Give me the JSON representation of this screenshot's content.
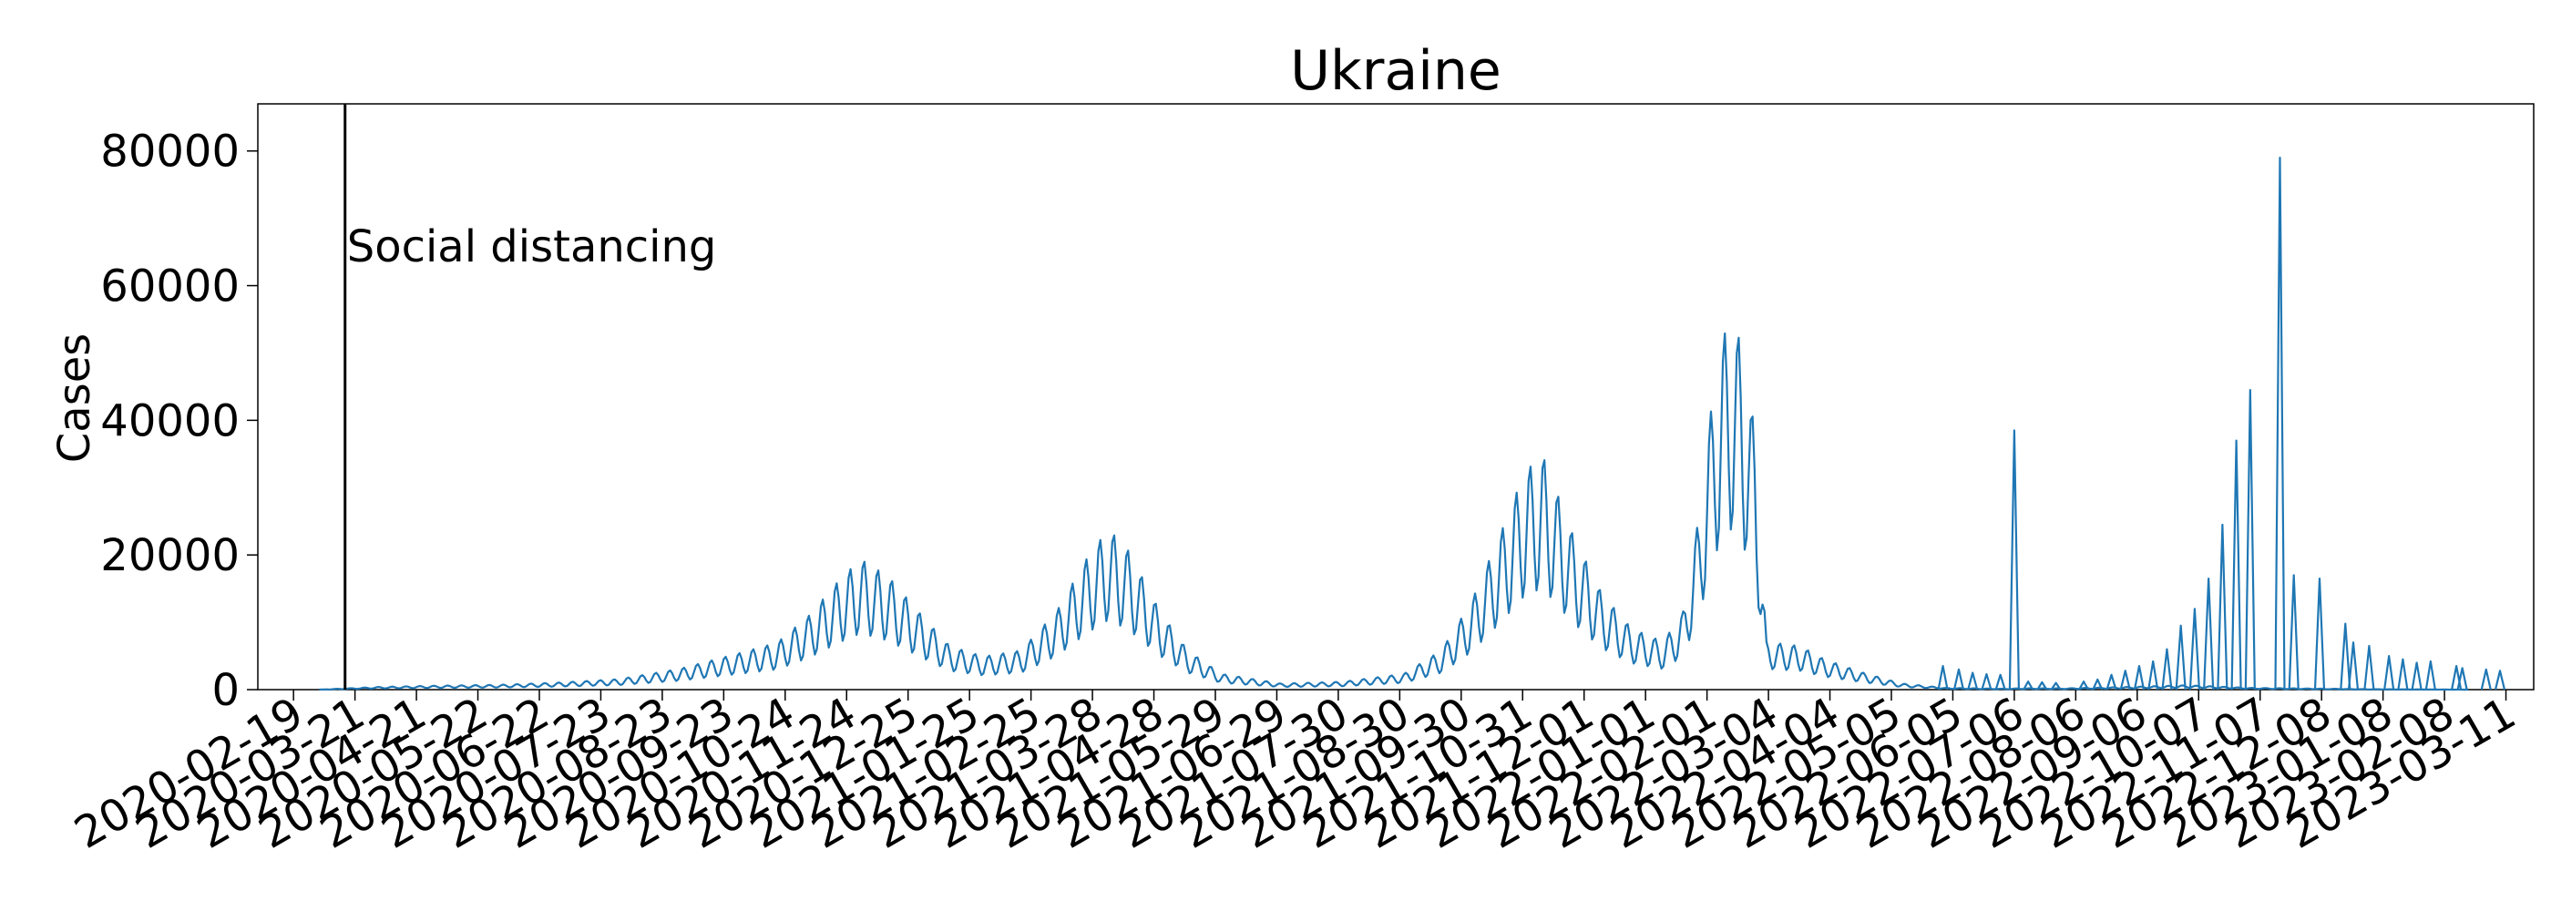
{
  "chart_data": {
    "type": "line",
    "title": "Ukraine",
    "xlabel": "",
    "ylabel": "Cases",
    "ylim": [
      0,
      87000
    ],
    "xlim": [
      "2020-02-01",
      "2023-03-25"
    ],
    "y_ticks": [
      0,
      20000,
      40000,
      60000,
      80000
    ],
    "x_ticks": [
      "2020-02-19",
      "2020-03-21",
      "2020-04-21",
      "2020-05-22",
      "2020-06-22",
      "2020-07-23",
      "2020-08-23",
      "2020-09-23",
      "2020-10-24",
      "2020-11-24",
      "2020-12-25",
      "2021-01-25",
      "2021-02-25",
      "2021-03-28",
      "2021-04-28",
      "2021-05-29",
      "2021-06-29",
      "2021-07-30",
      "2021-08-30",
      "2021-09-30",
      "2021-10-31",
      "2021-12-01",
      "2022-01-01",
      "2022-02-01",
      "2022-03-04",
      "2022-04-04",
      "2022-05-05",
      "2022-06-05",
      "2022-07-06",
      "2022-08-06",
      "2022-09-06",
      "2022-10-07",
      "2022-11-07",
      "2022-12-08",
      "2023-01-08",
      "2023-02-08",
      "2023-03-11"
    ],
    "grid": false,
    "annotations": [
      {
        "date": "2020-03-16",
        "text": "Social distancing",
        "style": "vertical-line"
      }
    ],
    "series": [
      {
        "color": "#1f77b4",
        "points": [
          [
            "2020-03-03",
            0
          ],
          [
            "2020-04-01",
            300
          ],
          [
            "2020-05-01",
            450
          ],
          [
            "2020-06-01",
            550
          ],
          [
            "2020-07-01",
            800
          ],
          [
            "2020-08-01",
            1200
          ],
          [
            "2020-09-01",
            2400
          ],
          [
            "2020-10-01",
            4200
          ],
          [
            "2020-10-20",
            5400
          ],
          [
            "2020-11-05",
            8500
          ],
          [
            "2020-11-20",
            12500
          ],
          [
            "2020-12-01",
            15000
          ],
          [
            "2020-12-15",
            13000
          ],
          [
            "2021-01-01",
            8500
          ],
          [
            "2021-01-15",
            5000
          ],
          [
            "2021-02-01",
            3800
          ],
          [
            "2021-02-20",
            4500
          ],
          [
            "2021-03-10",
            9000
          ],
          [
            "2021-03-25",
            15000
          ],
          [
            "2021-04-05",
            18500
          ],
          [
            "2021-04-15",
            16000
          ],
          [
            "2021-05-01",
            9000
          ],
          [
            "2021-05-15",
            4500
          ],
          [
            "2021-06-01",
            1800
          ],
          [
            "2021-07-01",
            700
          ],
          [
            "2021-08-01",
            900
          ],
          [
            "2021-09-01",
            1800
          ],
          [
            "2021-09-20",
            4500
          ],
          [
            "2021-10-05",
            10000
          ],
          [
            "2021-10-20",
            18000
          ],
          [
            "2021-11-01",
            25000
          ],
          [
            "2021-11-10",
            27000
          ],
          [
            "2021-11-25",
            18000
          ],
          [
            "2021-12-10",
            11000
          ],
          [
            "2021-12-25",
            7000
          ],
          [
            "2022-01-10",
            5500
          ],
          [
            "2022-01-20",
            9000
          ],
          [
            "2022-01-28",
            20000
          ],
          [
            "2022-02-05",
            36000
          ],
          [
            "2022-02-12",
            43000
          ],
          [
            "2022-02-18",
            40000
          ],
          [
            "2022-02-25",
            30000
          ],
          [
            "2022-03-03",
            5500
          ],
          [
            "2022-03-20",
            5000
          ],
          [
            "2022-04-01",
            3500
          ],
          [
            "2022-04-20",
            2000
          ],
          [
            "2022-05-10",
            700
          ],
          [
            "2022-06-01",
            200
          ],
          [
            "2022-07-01",
            100
          ],
          [
            "2022-07-10",
            150
          ],
          [
            "2022-08-01",
            150
          ],
          [
            "2022-09-01",
            300
          ],
          [
            "2022-10-01",
            500
          ],
          [
            "2022-11-01",
            200
          ],
          [
            "2023-01-01",
            50
          ],
          [
            "2023-02-20",
            0
          ]
        ]
      }
    ],
    "spikes": [
      [
        "2022-05-31",
        3500
      ],
      [
        "2022-06-08",
        3000
      ],
      [
        "2022-06-15",
        2500
      ],
      [
        "2022-06-22",
        2300
      ],
      [
        "2022-06-29",
        2200
      ],
      [
        "2022-07-06",
        38500
      ],
      [
        "2022-07-13",
        1200
      ],
      [
        "2022-07-20",
        1100
      ],
      [
        "2022-07-27",
        1000
      ],
      [
        "2022-08-10",
        1200
      ],
      [
        "2022-08-17",
        1500
      ],
      [
        "2022-08-24",
        2200
      ],
      [
        "2022-08-31",
        2800
      ],
      [
        "2022-09-07",
        3500
      ],
      [
        "2022-09-14",
        4200
      ],
      [
        "2022-09-21",
        6000
      ],
      [
        "2022-09-28",
        9500
      ],
      [
        "2022-10-05",
        12000
      ],
      [
        "2022-10-12",
        16500
      ],
      [
        "2022-10-19",
        24500
      ],
      [
        "2022-10-26",
        37000
      ],
      [
        "2022-11-02",
        44500
      ],
      [
        "2022-11-17",
        79000
      ],
      [
        "2022-11-24",
        17000
      ],
      [
        "2022-12-07",
        16500
      ],
      [
        "2022-12-20",
        9800
      ],
      [
        "2022-12-24",
        7000
      ],
      [
        "2023-01-01",
        6500
      ],
      [
        "2023-01-11",
        5000
      ],
      [
        "2023-01-18",
        4500
      ],
      [
        "2023-01-25",
        4000
      ],
      [
        "2023-02-01",
        4200
      ],
      [
        "2023-02-14",
        3500
      ],
      [
        "2023-02-17",
        3200
      ],
      [
        "2023-03-01",
        3000
      ],
      [
        "2023-03-08",
        2800
      ]
    ]
  }
}
